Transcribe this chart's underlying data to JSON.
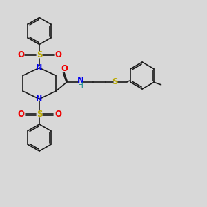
{
  "bg_color": "#d8d8d8",
  "bond_color": "#1a1a1a",
  "N_color": "#0000ee",
  "O_color": "#ee0000",
  "S_color": "#bbaa00",
  "S_thio_color": "#bbaa00",
  "NH_color": "#008080",
  "line_width": 1.2,
  "figsize": [
    3.0,
    3.0
  ],
  "dpi": 100,
  "xlim": [
    0,
    10
  ],
  "ylim": [
    0,
    10
  ]
}
